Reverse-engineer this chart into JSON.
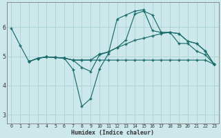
{
  "xlabel": "Humidex (Indice chaleur)",
  "bg_color": "#cce8ea",
  "grid_color": "#add5d8",
  "line_color": "#1a6b6b",
  "xlim": [
    -0.5,
    23.5
  ],
  "ylim": [
    2.7,
    6.85
  ],
  "xticks": [
    0,
    1,
    2,
    3,
    4,
    5,
    6,
    7,
    8,
    9,
    10,
    11,
    12,
    13,
    14,
    15,
    16,
    17,
    18,
    19,
    20,
    21,
    22,
    23
  ],
  "yticks": [
    3,
    4,
    5,
    6
  ],
  "lines": [
    {
      "x": [
        0,
        1,
        2,
        3,
        4,
        5,
        6,
        7,
        8,
        9,
        10,
        11,
        12,
        13,
        14,
        15,
        16,
        17,
        18,
        19,
        20,
        21,
        22,
        23
      ],
      "y": [
        5.97,
        5.38,
        4.82,
        4.93,
        4.98,
        4.96,
        4.94,
        4.55,
        3.28,
        3.55,
        4.57,
        5.08,
        6.28,
        6.42,
        6.55,
        6.6,
        5.88,
        5.82,
        5.82,
        5.44,
        5.44,
        5.18,
        5.05,
        4.72
      ]
    },
    {
      "x": [
        2,
        3,
        4,
        5,
        6,
        7,
        8,
        9,
        10,
        11,
        12,
        13,
        14,
        15,
        16,
        17,
        18,
        19,
        20,
        21,
        22,
        23
      ],
      "y": [
        4.82,
        4.93,
        4.98,
        4.96,
        4.94,
        4.87,
        4.87,
        4.87,
        4.87,
        4.87,
        4.87,
        4.87,
        4.87,
        4.87,
        4.87,
        4.87,
        4.87,
        4.87,
        4.87,
        4.87,
        4.87,
        4.72
      ]
    },
    {
      "x": [
        2,
        3,
        4,
        5,
        6,
        7,
        8,
        9,
        10,
        11,
        12,
        13,
        14,
        15,
        16,
        17,
        18,
        19,
        20,
        21,
        22,
        23
      ],
      "y": [
        4.82,
        4.93,
        4.98,
        4.96,
        4.94,
        4.87,
        4.62,
        4.48,
        5.05,
        5.15,
        5.3,
        5.42,
        5.55,
        5.62,
        5.7,
        5.78,
        5.82,
        5.78,
        5.52,
        5.44,
        5.18,
        4.72
      ]
    },
    {
      "x": [
        2,
        3,
        4,
        5,
        6,
        7,
        8,
        9,
        10,
        11,
        12,
        13,
        14,
        15,
        16,
        17,
        18,
        19,
        20,
        21,
        22,
        23
      ],
      "y": [
        4.82,
        4.93,
        4.98,
        4.96,
        4.94,
        4.87,
        4.87,
        4.87,
        5.08,
        5.15,
        5.3,
        5.56,
        6.45,
        6.55,
        6.42,
        5.82,
        5.82,
        5.78,
        5.52,
        5.44,
        5.18,
        4.72
      ]
    }
  ]
}
